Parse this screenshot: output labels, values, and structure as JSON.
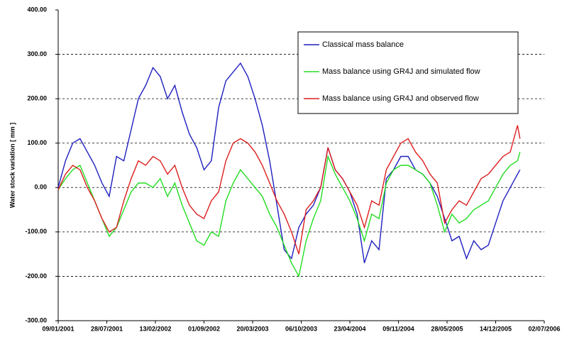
{
  "chart_data": {
    "type": "line",
    "y_label": "Water stock variation [ mm ]",
    "x": [
      "2001-01-09",
      "2001-02-08",
      "2001-03-10",
      "2001-04-09",
      "2001-05-09",
      "2001-06-08",
      "2001-07-08",
      "2001-08-07",
      "2001-09-06",
      "2001-10-06",
      "2001-11-05",
      "2001-12-05",
      "2002-01-04",
      "2002-02-03",
      "2002-03-05",
      "2002-04-04",
      "2002-05-04",
      "2002-06-03",
      "2002-07-03",
      "2002-08-02",
      "2002-09-01",
      "2002-10-01",
      "2002-10-31",
      "2002-11-30",
      "2002-12-30",
      "2003-01-29",
      "2003-02-28",
      "2003-03-30",
      "2003-04-29",
      "2003-05-29",
      "2003-06-28",
      "2003-07-28",
      "2003-08-27",
      "2003-09-26",
      "2003-10-26",
      "2003-11-25",
      "2003-12-25",
      "2004-01-24",
      "2004-02-23",
      "2004-03-24",
      "2004-04-23",
      "2004-05-23",
      "2004-06-22",
      "2004-07-22",
      "2004-08-21",
      "2004-09-20",
      "2004-10-20",
      "2004-11-19",
      "2004-12-19",
      "2005-01-18",
      "2005-02-17",
      "2005-03-19",
      "2005-04-18",
      "2005-05-18",
      "2005-06-17",
      "2005-07-17",
      "2005-08-16",
      "2005-09-15",
      "2005-10-15",
      "2005-11-14",
      "2005-12-14",
      "2006-01-13",
      "2006-02-12",
      "2006-03-14",
      "2006-03-24"
    ],
    "series": [
      {
        "name": "Classical mass balance",
        "color": "#1f1fbf",
        "values": [
          0,
          60,
          100,
          110,
          80,
          50,
          10,
          -20,
          70,
          60,
          130,
          200,
          230,
          270,
          250,
          200,
          230,
          170,
          120,
          90,
          40,
          60,
          180,
          240,
          260,
          280,
          250,
          200,
          140,
          60,
          -40,
          -140,
          -160,
          -90,
          -60,
          -40,
          0,
          90,
          40,
          20,
          -10,
          -60,
          -170,
          -120,
          -140,
          20,
          40,
          70,
          70,
          40,
          30,
          10,
          -20,
          -70,
          -120,
          -110,
          -160,
          -120,
          -140,
          -130,
          -80,
          -30,
          0,
          30,
          40
        ]
      },
      {
        "name": "Mass balance using GR4J and simulated flow",
        "color": "#22dd22",
        "values": [
          -5,
          20,
          40,
          50,
          10,
          -30,
          -70,
          -110,
          -90,
          -50,
          -10,
          10,
          10,
          0,
          20,
          -20,
          10,
          -40,
          -80,
          -120,
          -130,
          -100,
          -110,
          -30,
          10,
          40,
          20,
          0,
          -20,
          -60,
          -90,
          -130,
          -170,
          -200,
          -120,
          -70,
          -30,
          70,
          30,
          0,
          -30,
          -70,
          -120,
          -60,
          -70,
          10,
          40,
          50,
          50,
          40,
          30,
          10,
          -40,
          -100,
          -60,
          -80,
          -70,
          -50,
          -40,
          -30,
          0,
          30,
          50,
          60,
          80
        ]
      },
      {
        "name": "Mass balance using GR4J and observed flow",
        "color": "#dd1f1f",
        "values": [
          -5,
          30,
          50,
          40,
          0,
          -30,
          -70,
          -100,
          -90,
          -30,
          20,
          60,
          50,
          70,
          60,
          30,
          50,
          0,
          -40,
          -60,
          -70,
          -30,
          -10,
          60,
          100,
          110,
          100,
          80,
          50,
          10,
          -30,
          -60,
          -100,
          -150,
          -50,
          -30,
          0,
          90,
          40,
          20,
          -10,
          -40,
          -90,
          -30,
          -40,
          40,
          70,
          100,
          110,
          80,
          60,
          30,
          10,
          -80,
          -50,
          -30,
          -40,
          -10,
          20,
          30,
          50,
          70,
          80,
          140,
          110
        ]
      }
    ],
    "xlim": [
      "2001-01-09",
      "2006-07-02"
    ],
    "xticks": [
      {
        "value": "2001-01-09",
        "label": "09/01/2001"
      },
      {
        "value": "2001-07-28",
        "label": "28/07/2001"
      },
      {
        "value": "2002-02-13",
        "label": "13/02/2002"
      },
      {
        "value": "2002-09-01",
        "label": "01/09/2002"
      },
      {
        "value": "2003-03-20",
        "label": "20/03/2003"
      },
      {
        "value": "2003-10-06",
        "label": "06/10/2003"
      },
      {
        "value": "2004-04-23",
        "label": "23/04/2004"
      },
      {
        "value": "2004-11-09",
        "label": "09/11/2004"
      },
      {
        "value": "2005-05-28",
        "label": "28/05/2005"
      },
      {
        "value": "2005-12-14",
        "label": "14/12/2005"
      },
      {
        "value": "2006-07-02",
        "label": "02/07/2006"
      }
    ],
    "ylim": [
      -300,
      400
    ],
    "yticks": [
      {
        "value": -300,
        "label": "-300.00"
      },
      {
        "value": -200,
        "label": "-200.00"
      },
      {
        "value": -100,
        "label": "-100.00"
      },
      {
        "value": 0,
        "label": "0.00"
      },
      {
        "value": 100,
        "label": "100.00"
      },
      {
        "value": 200,
        "label": "200.00"
      },
      {
        "value": 300,
        "label": "300.00"
      },
      {
        "value": 400,
        "label": "400.00"
      }
    ],
    "grid": true,
    "legend": "top-right"
  }
}
